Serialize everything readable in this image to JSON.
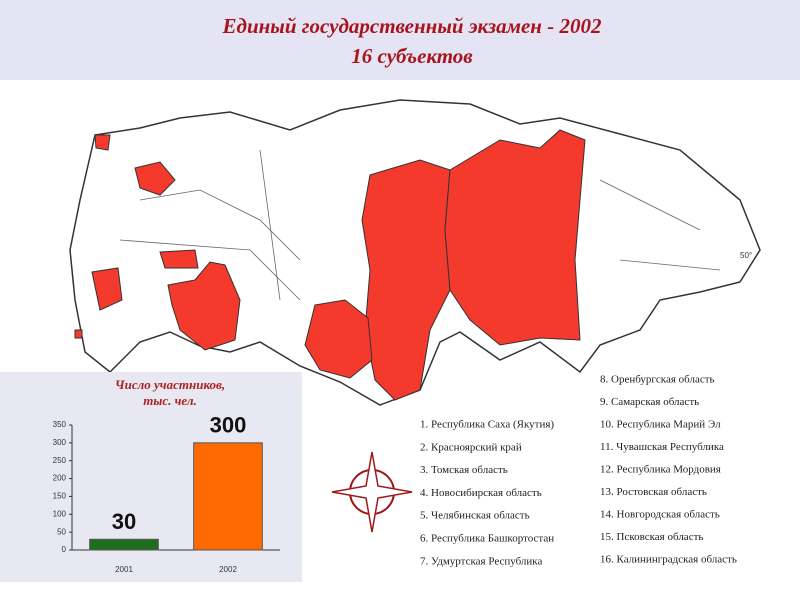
{
  "header": {
    "title": [
      "Единый государственный экзамен - 2002",
      "16 субъектов"
    ]
  },
  "map": {
    "labels": [
      "50°"
    ]
  },
  "legend": {
    "items": [
      "1. Республика Саха (Якутия)",
      "2. Красноярский край",
      "3. Томская область",
      "4. Новосибирская область",
      "5. Челябинская область",
      "6. Республика Башкортостан",
      "7. Удмуртская Республика",
      "8. Оренбургская область",
      "9. Самарская область",
      "10. Республика Марий Эл",
      "11. Чувашская Республика",
      "12. Республика Мордовия",
      "13.  Ростовская область",
      "14.  Новгородская область",
      "15. Псковская область",
      "16. Калининградская область"
    ]
  },
  "chart_data": {
    "type": "bar",
    "title": [
      "Число участников,",
      "тыс. чел."
    ],
    "categories": [
      "2001",
      "2002"
    ],
    "values": [
      30,
      300
    ],
    "colors": [
      "#1f6e1f",
      "#ff6a00"
    ],
    "ylim": [
      0,
      350
    ],
    "yticks": [
      0,
      50,
      100,
      150,
      200,
      250,
      300,
      350
    ],
    "grid": false
  }
}
